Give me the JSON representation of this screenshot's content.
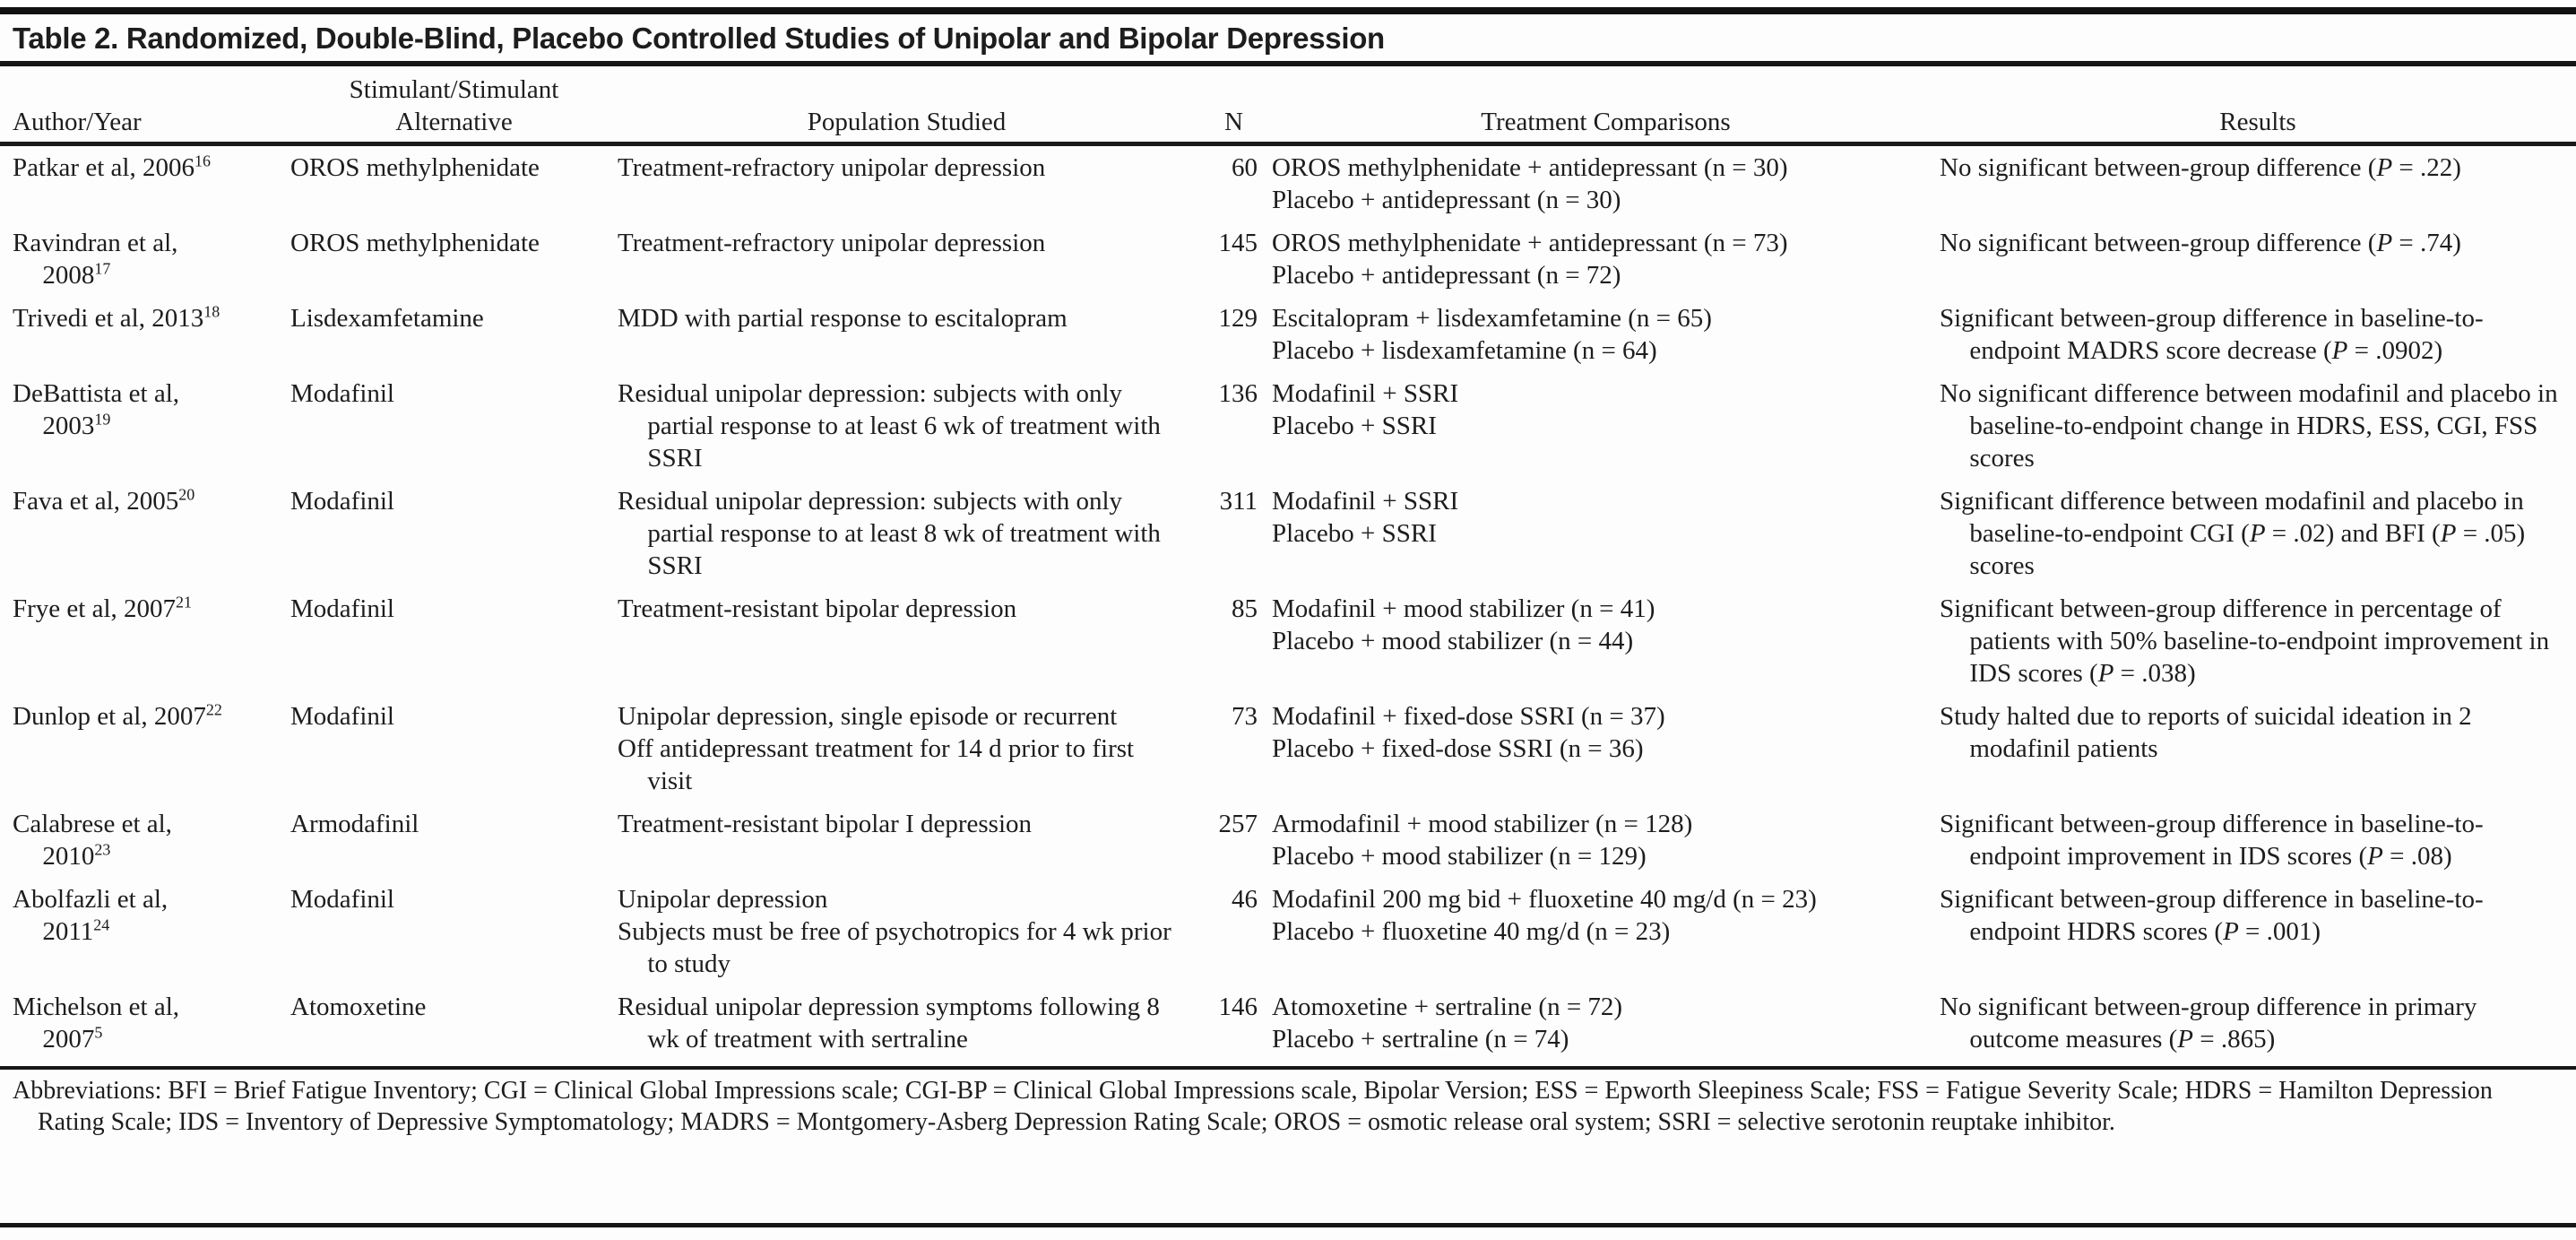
{
  "colors": {
    "text": "#1d1d1d",
    "rule": "#161616",
    "background": "#fdfdfd"
  },
  "table": {
    "title": "Table 2. Randomized, Double-Blind, Placebo Controlled Studies of Unipolar and Bipolar Depression",
    "columns": [
      "Author/Year",
      "Stimulant/Stimulant\nAlternative",
      "Population Studied",
      "N",
      "Treatment Comparisons",
      "Results"
    ],
    "rows": [
      {
        "author": "Patkar et al, 2006",
        "ref": "16",
        "stimulant": "OROS methylphenidate",
        "population": [
          "Treatment-refractory unipolar depression"
        ],
        "n": "60",
        "comparisons": [
          "OROS methylphenidate + antidepressant (n = 30)",
          "Placebo + antidepressant (n = 30)"
        ],
        "results": "No significant between-group difference (P = .22)"
      },
      {
        "author": "Ravindran et al,\n2008",
        "ref": "17",
        "stimulant": "OROS methylphenidate",
        "population": [
          "Treatment-refractory unipolar depression"
        ],
        "n": "145",
        "comparisons": [
          "OROS methylphenidate + antidepressant (n = 73)",
          "Placebo + antidepressant (n = 72)"
        ],
        "results": "No significant between-group difference (P = .74)"
      },
      {
        "author": "Trivedi et al, 2013",
        "ref": "18",
        "stimulant": "Lisdexamfetamine",
        "population": [
          "MDD with partial response to escitalopram"
        ],
        "n": "129",
        "comparisons": [
          "Escitalopram + lisdexamfetamine (n = 65)",
          "Placebo + lisdexamfetamine (n = 64)"
        ],
        "results": "Significant between-group difference in baseline-to-endpoint MADRS score decrease (P = .0902)"
      },
      {
        "author": "DeBattista et al,\n2003",
        "ref": "19",
        "stimulant": "Modafinil",
        "population": [
          "Residual unipolar depression: subjects with only partial response to at least 6 wk of treatment with SSRI"
        ],
        "n": "136",
        "comparisons": [
          "Modafinil + SSRI",
          "Placebo + SSRI"
        ],
        "results": "No significant difference between modafinil and placebo in baseline-to-endpoint change in HDRS, ESS, CGI, FSS scores"
      },
      {
        "author": "Fava et al, 2005",
        "ref": "20",
        "stimulant": "Modafinil",
        "population": [
          "Residual unipolar depression: subjects with only partial response to at least 8 wk of treatment with SSRI"
        ],
        "n": "311",
        "comparisons": [
          "Modafinil + SSRI",
          "Placebo + SSRI"
        ],
        "results": "Significant difference between modafinil and placebo in baseline-to-endpoint CGI (P = .02) and BFI (P = .05) scores"
      },
      {
        "author": "Frye et al, 2007",
        "ref": "21",
        "stimulant": "Modafinil",
        "population": [
          "Treatment-resistant bipolar depression"
        ],
        "n": "85",
        "comparisons": [
          "Modafinil + mood stabilizer (n = 41)",
          "Placebo + mood stabilizer (n = 44)"
        ],
        "results": "Significant between-group difference in percentage of patients with 50% baseline-to-endpoint improvement in IDS scores (P = .038)"
      },
      {
        "author": "Dunlop et al, 2007",
        "ref": "22",
        "stimulant": "Modafinil",
        "population": [
          "Unipolar depression, single episode or recurrent",
          "Off antidepressant treatment for 14 d prior to first visit"
        ],
        "n": "73",
        "comparisons": [
          "Modafinil + fixed-dose SSRI (n = 37)",
          "Placebo + fixed-dose SSRI (n = 36)"
        ],
        "results": "Study halted due to reports of suicidal ideation in 2 modafinil patients"
      },
      {
        "author": "Calabrese et al,\n2010",
        "ref": "23",
        "stimulant": "Armodafinil",
        "population": [
          "Treatment-resistant bipolar I depression"
        ],
        "n": "257",
        "comparisons": [
          "Armodafinil + mood stabilizer (n = 128)",
          "Placebo + mood stabilizer (n = 129)"
        ],
        "results": "Significant between-group difference in baseline-to-endpoint improvement in IDS scores (P = .08)"
      },
      {
        "author": "Abolfazli et al,\n2011",
        "ref": "24",
        "stimulant": "Modafinil",
        "population": [
          "Unipolar depression",
          "Subjects must be free of psychotropics for 4 wk prior to study"
        ],
        "n": "46",
        "comparisons": [
          "Modafinil 200 mg bid + fluoxetine 40 mg/d (n = 23)",
          "Placebo + fluoxetine 40 mg/d (n = 23)"
        ],
        "results": "Significant between-group difference in baseline-to-endpoint HDRS scores (P = .001)"
      },
      {
        "author": "Michelson et al,\n2007",
        "ref": "5",
        "stimulant": "Atomoxetine",
        "population": [
          "Residual unipolar depression symptoms following 8 wk of treatment with sertraline"
        ],
        "n": "146",
        "comparisons": [
          "Atomoxetine + sertraline (n = 72)",
          "Placebo + sertraline (n = 74)"
        ],
        "results": "No significant between-group difference in primary outcome measures (P = .865)"
      }
    ],
    "footnote": "Abbreviations: BFI = Brief Fatigue Inventory; CGI = Clinical Global Impressions scale; CGI-BP = Clinical Global Impressions scale, Bipolar Version; ESS = Epworth Sleepiness Scale; FSS = Fatigue Severity Scale; HDRS = Hamilton Depression Rating Scale; IDS = Inventory of Depressive Symptomatology; MADRS = Montgomery-Asberg Depression Rating Scale; OROS = osmotic release oral system; SSRI = selective serotonin reuptake inhibitor."
  }
}
